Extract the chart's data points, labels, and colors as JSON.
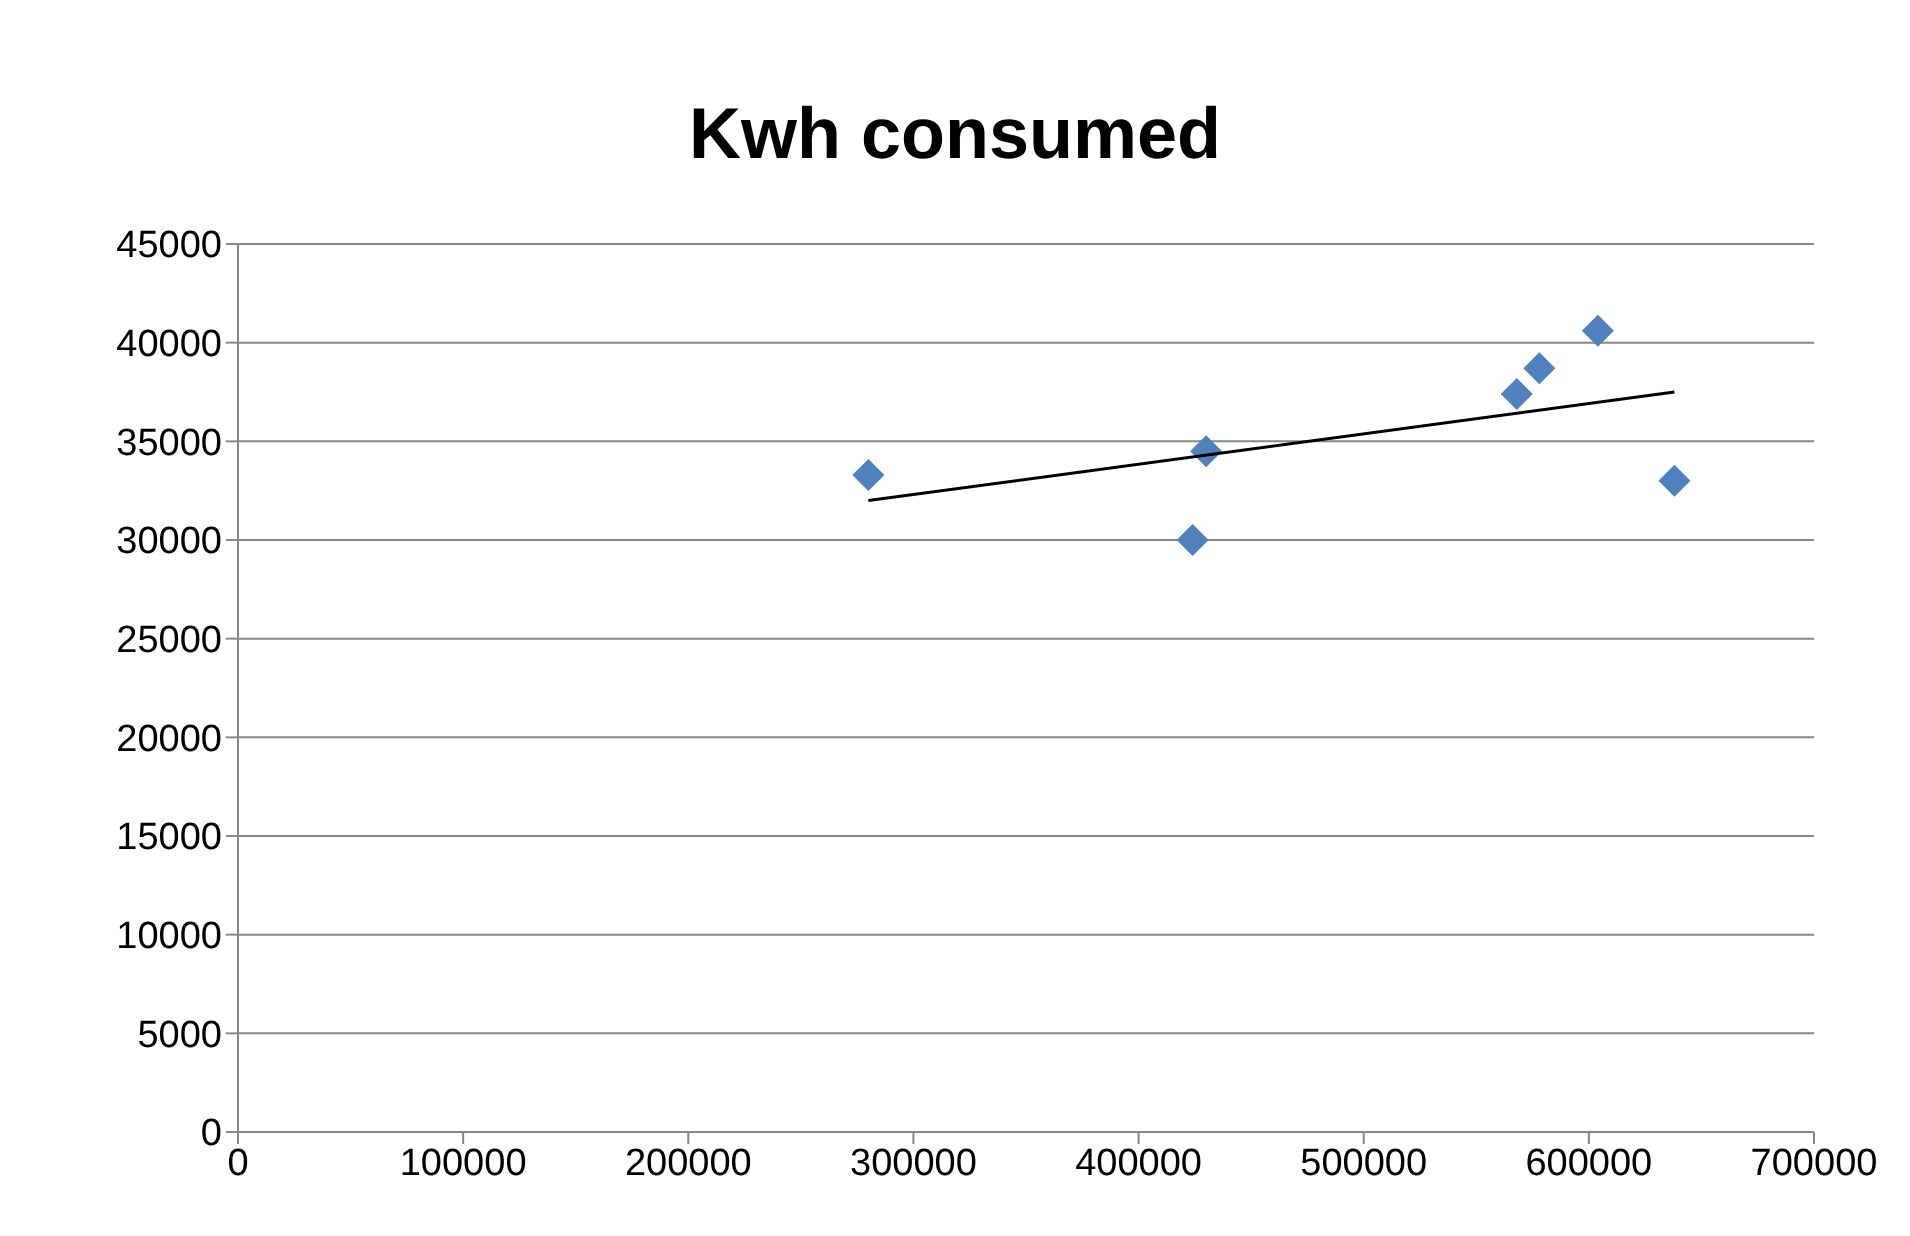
{
  "chart_data": {
    "type": "scatter",
    "title": "Kwh consumed",
    "marker": "diamond",
    "grid": "y",
    "xlim": [
      0,
      700000
    ],
    "xticks": [
      0,
      100000,
      200000,
      300000,
      400000,
      500000,
      600000,
      700000
    ],
    "ylim": [
      0,
      45000
    ],
    "yticks": [
      0,
      5000,
      10000,
      15000,
      20000,
      25000,
      30000,
      35000,
      40000,
      45000
    ],
    "series": [
      {
        "color": "#4f81bd",
        "x": [
          280000,
          424000,
          430000,
          568000,
          578000,
          604000,
          638000
        ],
        "values": [
          33300,
          30000,
          34500,
          37400,
          38700,
          40600,
          33000
        ]
      },
      {
        "type": "line",
        "color": "#000000",
        "marker": "none",
        "x": [
          280000,
          638000
        ],
        "values": [
          32000,
          37500
        ]
      }
    ]
  }
}
